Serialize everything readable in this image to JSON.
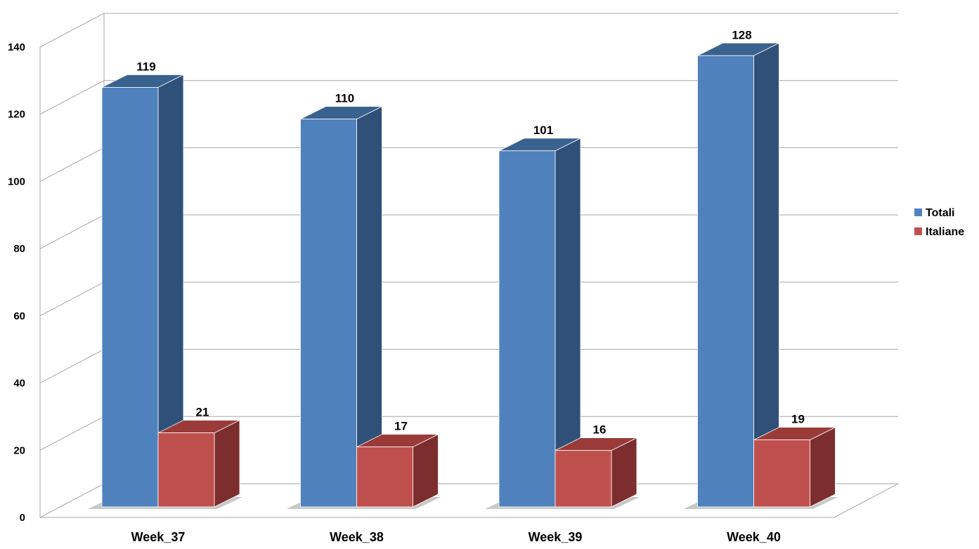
{
  "chart_data": {
    "type": "bar",
    "style": "3d-clustered-column",
    "categories": [
      "Week_37",
      "Week_38",
      "Week_39",
      "Week_40"
    ],
    "series": [
      {
        "name": "Totali",
        "values": [
          119,
          110,
          101,
          128
        ],
        "color": "#4f81bd",
        "side_color": "#2f5078",
        "top_color": "#3a628f"
      },
      {
        "name": "Italiane",
        "values": [
          21,
          17,
          16,
          19
        ],
        "color": "#c0504d",
        "side_color": "#7b2e2d",
        "top_color": "#9a3b39"
      }
    ],
    "ylim": [
      0,
      140
    ],
    "yticks": [
      "0",
      "20",
      "40",
      "60",
      "80",
      "100",
      "120",
      "140"
    ],
    "grid": true,
    "legend_position": "right"
  }
}
